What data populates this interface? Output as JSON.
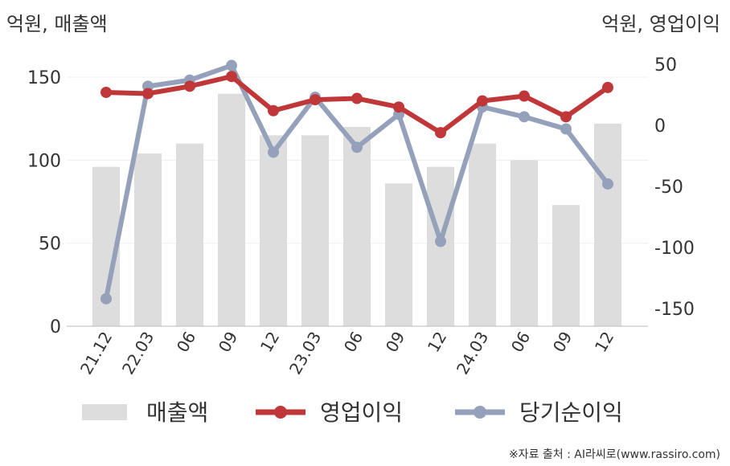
{
  "chart_data": {
    "type": "bar+line",
    "categories": [
      "21.12",
      "22.03",
      "06",
      "09",
      "12",
      "23.03",
      "06",
      "09",
      "12",
      "24.03",
      "06",
      "09",
      "12"
    ],
    "left_axis": {
      "unit_label": "억원, 매출액",
      "ticks": [
        0,
        50,
        100,
        150
      ],
      "range": [
        0,
        150
      ]
    },
    "right_axis": {
      "unit_label": "억원, 영업이익",
      "ticks": [
        50,
        0,
        -50,
        -100,
        -150
      ],
      "range": [
        -150,
        50
      ]
    },
    "series": [
      {
        "name": "매출액",
        "kind": "bar",
        "axis": "left",
        "color": "#dddddd",
        "values": [
          96,
          104,
          110,
          140,
          115,
          115,
          120,
          86,
          96,
          110,
          100,
          73,
          122
        ]
      },
      {
        "name": "영업이익",
        "kind": "line",
        "axis": "right",
        "color": "#c0373a",
        "values": [
          27,
          26,
          32,
          40,
          12,
          21,
          22,
          15,
          -6,
          20,
          24,
          7,
          31
        ]
      },
      {
        "name": "당기순이익",
        "kind": "line",
        "axis": "right",
        "color": "#95a0bb",
        "values": [
          -142,
          32,
          37,
          49,
          -22,
          23,
          -18,
          9,
          -95,
          15,
          7,
          -3,
          -48
        ]
      }
    ],
    "grid": true,
    "legend_position": "bottom"
  },
  "footer": {
    "source": "※자료 출처 : AI라씨로(www.rassiro.com)"
  }
}
